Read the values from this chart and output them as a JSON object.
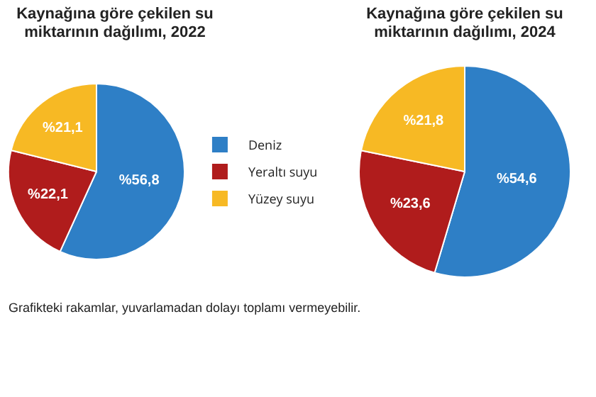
{
  "chart_data": [
    {
      "type": "pie",
      "title": "Kaynağına göre çekilen su miktarının dağılımı, 2022",
      "categories": [
        "Deniz",
        "Yeraltı suyu",
        "Yüzey suyu"
      ],
      "values": [
        56.8,
        22.1,
        21.1
      ],
      "colors": [
        "#2e7fc6",
        "#b01c1c",
        "#f7b924"
      ],
      "value_labels": [
        "%56,8",
        "%22,1",
        "%21,1"
      ],
      "legend": "right",
      "annotations": [
        "Grafikteki rakamlar, yuvarlamadan dolayı toplamı vermeyebilir."
      ]
    },
    {
      "type": "pie",
      "title": "Kaynağına göre çekilen su miktarının dağılımı, 2024",
      "values": [
        54.6,
        23.6,
        21.8
      ],
      "colors": [
        "#2e7fc6",
        "#b01c1c",
        "#f7b924"
      ],
      "value_labels": [
        "%54,6",
        "%23,6",
        "%21,8"
      ],
      "legend": false
    }
  ]
}
